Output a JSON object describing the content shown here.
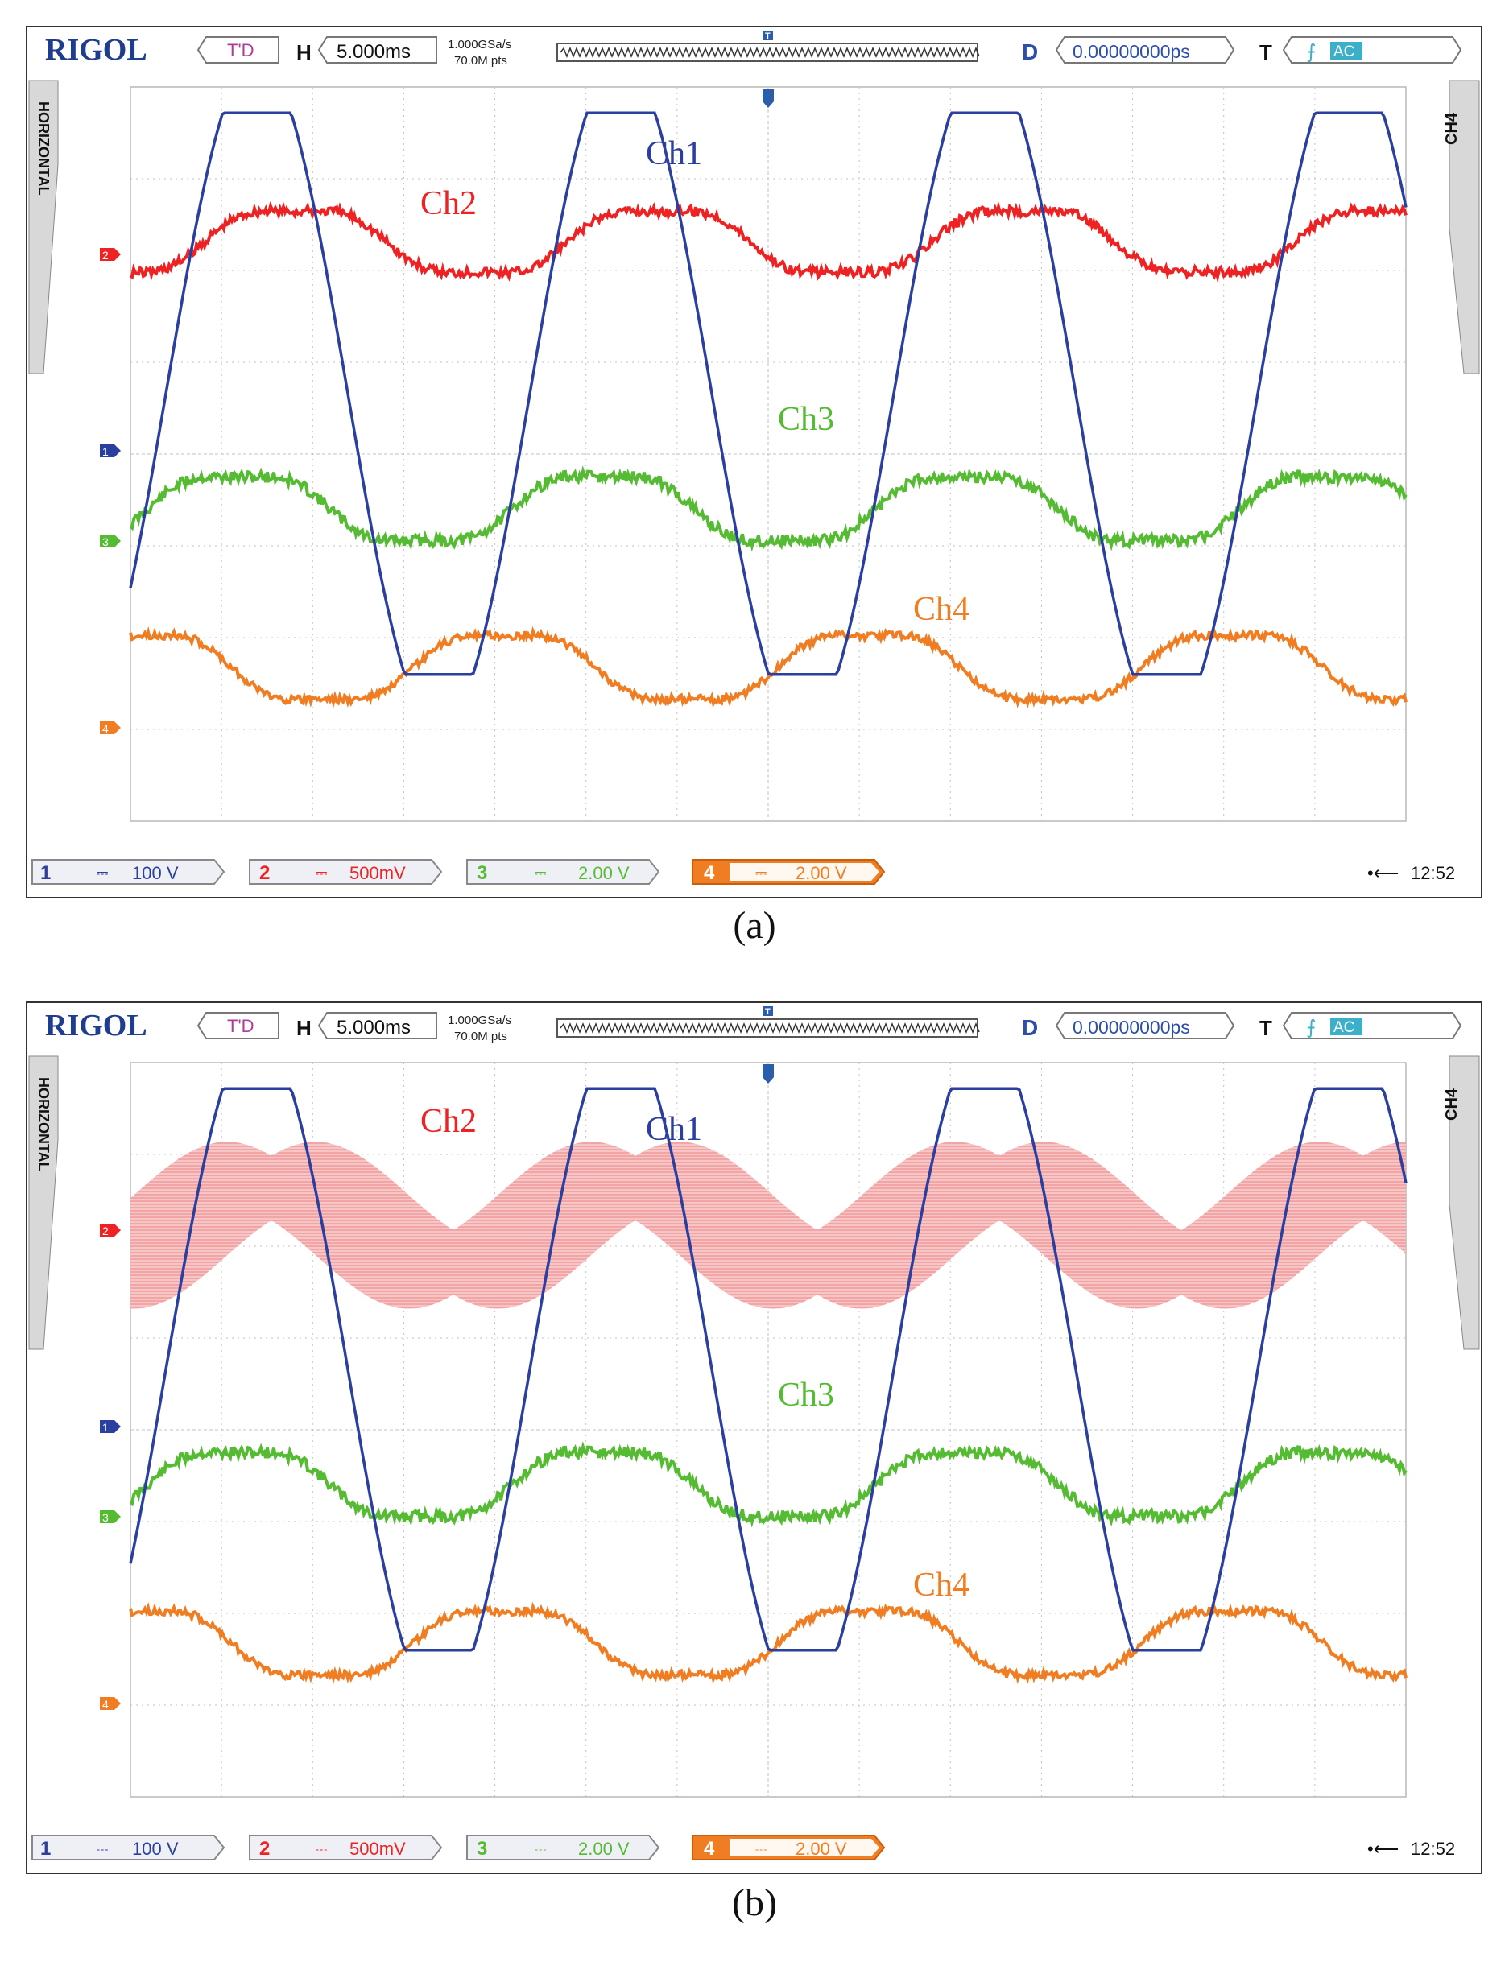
{
  "colors": {
    "ch1": "#2b3f9e",
    "ch2": "#ee2222",
    "ch2_faded": "#f08a8a",
    "ch3": "#55bb33",
    "ch4": "#f07d22",
    "brand": "#1e3d8f",
    "grid": "#b8b8b8",
    "bar_bg": "#e9ecf2"
  },
  "panels": [
    {
      "caption": "(a)",
      "header": {
        "brand": "RIGOL",
        "mode": "T'D",
        "h_label": "H",
        "timebase": "5.000ms",
        "sample_rate": "1.000GSa/s",
        "points": "70.0M pts",
        "d_label": "D",
        "delay": "0.00000000ps",
        "t_label": "T",
        "trigger_coupling": "AC"
      },
      "side": {
        "left": "HORIZONTAL",
        "right": "CH4"
      },
      "traces": [
        {
          "label": "Ch1"
        },
        {
          "label": "Ch2"
        },
        {
          "label": "Ch3"
        },
        {
          "label": "Ch4"
        }
      ],
      "markers": [
        "2",
        "1",
        "3",
        "4"
      ],
      "footer": {
        "channels": [
          {
            "num": "1",
            "scale": "100 V"
          },
          {
            "num": "2",
            "scale": "500mV"
          },
          {
            "num": "3",
            "scale": "2.00 V"
          },
          {
            "num": "4",
            "scale": "2.00 V"
          }
        ],
        "time": "12:52"
      }
    },
    {
      "caption": "(b)",
      "header": {
        "brand": "RIGOL",
        "mode": "T'D",
        "h_label": "H",
        "timebase": "5.000ms",
        "sample_rate": "1.000GSa/s",
        "points": "70.0M pts",
        "d_label": "D",
        "delay": "0.00000000ps",
        "t_label": "T",
        "trigger_coupling": "AC"
      },
      "side": {
        "left": "HORIZONTAL",
        "right": "CH4"
      },
      "traces": [
        {
          "label": "Ch1"
        },
        {
          "label": "Ch2"
        },
        {
          "label": "Ch3"
        },
        {
          "label": "Ch4"
        }
      ],
      "markers": [
        "2",
        "1",
        "3",
        "4"
      ],
      "footer": {
        "channels": [
          {
            "num": "1",
            "scale": "100 V"
          },
          {
            "num": "2",
            "scale": "500mV"
          },
          {
            "num": "3",
            "scale": "2.00 V"
          },
          {
            "num": "4",
            "scale": "2.00 V"
          }
        ],
        "time": "12:52"
      }
    }
  ]
}
